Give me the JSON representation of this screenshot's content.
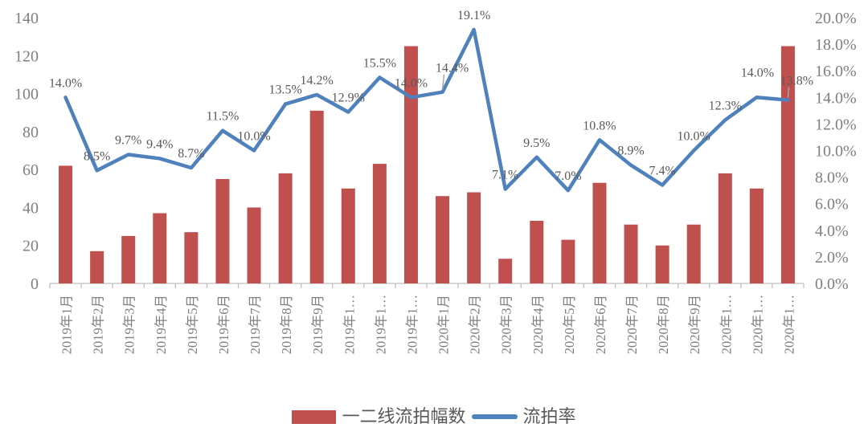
{
  "chart_data": {
    "type": "combo-bar-line",
    "title": "",
    "grid": false,
    "legend_position": "bottom",
    "categories": [
      "2019年1月",
      "2019年2月",
      "2019年3月",
      "2019年4月",
      "2019年5月",
      "2019年6月",
      "2019年7月",
      "2019年8月",
      "2019年9月",
      "2019年1…",
      "2019年1…",
      "2019年1…",
      "2020年1月",
      "2020年2月",
      "2020年3月",
      "2020年4月",
      "2020年5月",
      "2020年6月",
      "2020年7月",
      "2020年8月",
      "2020年9月",
      "2020年1…",
      "2020年1…",
      "2020年1…"
    ],
    "series": [
      {
        "name": "一二线流拍幅数",
        "type": "bar",
        "axis": "left",
        "color": "#c0504d",
        "values": [
          62,
          17,
          25,
          37,
          27,
          55,
          40,
          58,
          91,
          50,
          63,
          125,
          46,
          48,
          13,
          33,
          23,
          53,
          31,
          20,
          31,
          58,
          50,
          125
        ]
      },
      {
        "name": "流拍率",
        "type": "line",
        "axis": "right",
        "color": "#4f81bd",
        "values": [
          14.0,
          8.5,
          9.7,
          9.4,
          8.7,
          11.5,
          10.0,
          13.5,
          14.2,
          12.9,
          15.5,
          14.0,
          14.4,
          19.1,
          7.1,
          9.5,
          7.0,
          10.8,
          8.9,
          7.4,
          10.0,
          12.3,
          14.0,
          13.8
        ],
        "data_labels": [
          "14.0%",
          "8.5%",
          "9.7%",
          "9.4%",
          "8.7%",
          "11.5%",
          "10.0%",
          "13.5%",
          "14.2%",
          "12.9%",
          "15.5%",
          "14.0%",
          "14.4%",
          "19.1%",
          "7.1%",
          "9.5%",
          "7.0%",
          "10.8%",
          "8.9%",
          "7.4%",
          "10.0%",
          "12.3%",
          "14.0%",
          "13.8%"
        ]
      }
    ],
    "left_axis": {
      "min": 0,
      "max": 140,
      "tick_labels": [
        "0",
        "20",
        "40",
        "60",
        "80",
        "100",
        "120",
        "140"
      ]
    },
    "right_axis": {
      "min": 0,
      "max": 20,
      "tick_labels": [
        "0.0%",
        "2.0%",
        "4.0%",
        "6.0%",
        "8.0%",
        "10.0%",
        "12.0%",
        "14.0%",
        "16.0%",
        "18.0%",
        "20.0%"
      ]
    }
  },
  "colors": {
    "bar": "#c0504d",
    "line": "#4f81bd",
    "axis_text": "#7f7f7f",
    "data_label_text": "#595959",
    "axis_line": "#bfbfbf",
    "leader_line": "#a6a6a6",
    "background": "#ffffff"
  }
}
